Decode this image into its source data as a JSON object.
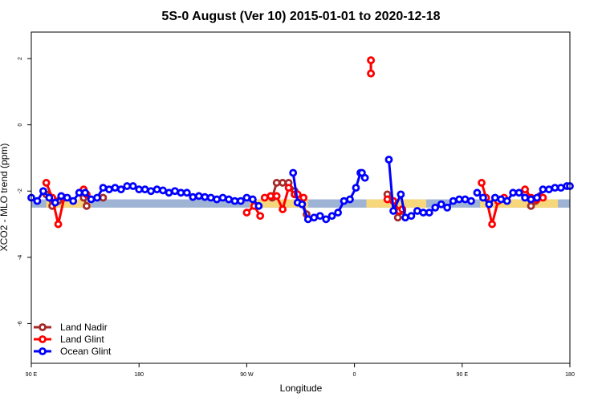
{
  "chart_data": {
    "type": "line",
    "title": "5S-0 August (Ver 10)   2015-01-01 to 2020-12-18",
    "xlabel": "Longitude",
    "ylabel": "XCO2 - MLO trend (ppm)",
    "xlim": [
      -90,
      270
    ],
    "ylim": [
      -7.2,
      2.8
    ],
    "x_ticks": [
      {
        "value": -90,
        "label": "90 E"
      },
      {
        "value": -18,
        "label": "180"
      },
      {
        "value": 54,
        "label": "90 W"
      },
      {
        "value": 126,
        "label": "0"
      },
      {
        "value": 198,
        "label": "90 E"
      },
      {
        "value": 270,
        "label": "180"
      }
    ],
    "y_ticks": [
      -6,
      -4,
      -2,
      0,
      2
    ],
    "grid": false,
    "legend_position": "bottom-left",
    "bands": [
      {
        "kind": "blue",
        "color": "#9fb4d4",
        "x": [
          -90,
          270
        ],
        "y": [
          -2.5,
          -2.25
        ]
      },
      {
        "kind": "yellow",
        "color": "#f6d77c",
        "x": [
          -80,
          -50
        ],
        "y": [
          -2.5,
          -2.25
        ]
      },
      {
        "kind": "yellow",
        "color": "#f6d77c",
        "x": [
          56,
          95
        ],
        "y": [
          -2.5,
          -2.25
        ]
      },
      {
        "kind": "yellow",
        "color": "#f6d77c",
        "x": [
          134,
          174
        ],
        "y": [
          -2.5,
          -2.25
        ]
      },
      {
        "kind": "yellow",
        "color": "#f6d77c",
        "x": [
          210,
          262
        ],
        "y": [
          -2.5,
          -2.25
        ]
      }
    ],
    "series": [
      {
        "name": "Land Nadir",
        "color": "#a52a2a",
        "segments": [
          {
            "x": [
              -80,
              -76,
              -72
            ],
            "y": [
              -2.1,
              -2.45,
              -2.3
            ]
          },
          {
            "x": [
              -55,
              -53
            ],
            "y": [
              -2.2,
              -2.45
            ]
          },
          {
            "x": [
              -42
            ],
            "y": [
              -2.2
            ]
          },
          {
            "x": [
              71,
              74,
              78,
              82,
              86,
              90,
              94
            ],
            "y": [
              -2.2,
              -1.75,
              -1.75,
              -1.75,
              -2.0,
              -2.2,
              -2.7
            ]
          },
          {
            "x": [
              137,
              137
            ],
            "y": [
              1.55,
              1.95
            ]
          },
          {
            "x": [
              148,
              152,
              155,
              158
            ],
            "y": [
              -2.1,
              -2.3,
              -2.8,
              -2.6
            ]
          },
          {
            "x": [
              240,
              244,
              247,
              250
            ],
            "y": [
              -2.05,
              -2.45,
              -2.3,
              -2.15
            ]
          }
        ]
      },
      {
        "name": "Land Glint",
        "color": "#ff0000",
        "segments": [
          {
            "x": [
              -80,
              -76,
              -72,
              -68
            ],
            "y": [
              -1.75,
              -2.2,
              -3.0,
              -2.2
            ]
          },
          {
            "x": [
              -55,
              -53
            ],
            "y": [
              -1.95,
              -2.1
            ]
          },
          {
            "x": [
              54,
              59,
              63
            ],
            "y": [
              -2.65,
              -2.45,
              -2.75
            ]
          },
          {
            "x": [
              66,
              70,
              74,
              78,
              82,
              86,
              88,
              92
            ],
            "y": [
              -2.2,
              -2.15,
              -2.15,
              -2.55,
              -1.9,
              -2.1,
              -2.1,
              -2.2
            ]
          },
          {
            "x": [
              137,
              137
            ],
            "y": [
              1.55,
              1.95
            ]
          },
          {
            "x": [
              148,
              152,
              156,
              158
            ],
            "y": [
              -2.25,
              -2.3,
              -2.6,
              -2.55
            ]
          },
          {
            "x": [
              211,
              214,
              218,
              222,
              226
            ],
            "y": [
              -1.75,
              -2.2,
              -3.0,
              -2.3,
              -2.2
            ]
          },
          {
            "x": [
              240,
              244,
              248,
              252
            ],
            "y": [
              -1.95,
              -2.2,
              -2.25,
              -2.2
            ]
          }
        ]
      },
      {
        "name": "Ocean Glint",
        "color": "#0000ff",
        "segments": [
          {
            "x": [
              -90,
              -86,
              -82,
              -78,
              -74,
              -70,
              -66,
              -62,
              -58,
              -54,
              -50,
              -46,
              -42,
              -38,
              -34,
              -30,
              -26,
              -22,
              -18,
              -14,
              -10,
              -6,
              -2,
              2,
              6,
              10,
              14,
              18,
              22,
              26,
              30,
              34,
              38,
              42,
              46,
              50,
              54,
              58,
              62
            ],
            "y": [
              -2.2,
              -2.3,
              -2.0,
              -2.2,
              -2.35,
              -2.15,
              -2.2,
              -2.3,
              -2.05,
              -2.05,
              -2.25,
              -2.2,
              -1.9,
              -1.95,
              -1.9,
              -1.95,
              -1.85,
              -1.85,
              -1.95,
              -1.95,
              -2.0,
              -1.95,
              -1.98,
              -2.05,
              -2.0,
              -2.05,
              -2.05,
              -2.18,
              -2.15,
              -2.18,
              -2.2,
              -2.25,
              -2.2,
              -2.25,
              -2.3,
              -2.3,
              -2.2,
              -2.25,
              -2.45
            ]
          },
          {
            "x": [
              85,
              88,
              91,
              95,
              99,
              103,
              107,
              111,
              115,
              119,
              123,
              127,
              130
            ],
            "y": [
              -1.45,
              -2.35,
              -2.4,
              -2.85,
              -2.8,
              -2.75,
              -2.85,
              -2.75,
              -2.65,
              -2.3,
              -2.25,
              -1.9,
              -1.45
            ]
          },
          {
            "x": [
              131,
              133
            ],
            "y": [
              -1.45,
              -1.6
            ]
          },
          {
            "x": [
              149,
              152,
              157,
              160,
              164,
              168,
              172,
              176,
              180,
              184,
              188,
              192,
              196,
              200,
              204
            ],
            "y": [
              -1.05,
              -2.6,
              -2.1,
              -2.8,
              -2.75,
              -2.6,
              -2.65,
              -2.65,
              -2.5,
              -2.4,
              -2.5,
              -2.3,
              -2.25,
              -2.25,
              -2.3
            ]
          },
          {
            "x": [
              208,
              212,
              216,
              220,
              224,
              228,
              232,
              236,
              240,
              244,
              248,
              252,
              256,
              260,
              264,
              268,
              270
            ],
            "y": [
              -2.05,
              -2.2,
              -2.4,
              -2.2,
              -2.25,
              -2.3,
              -2.05,
              -2.05,
              -2.2,
              -2.25,
              -2.2,
              -1.95,
              -1.95,
              -1.9,
              -1.9,
              -1.85,
              -1.85
            ]
          }
        ]
      }
    ]
  }
}
